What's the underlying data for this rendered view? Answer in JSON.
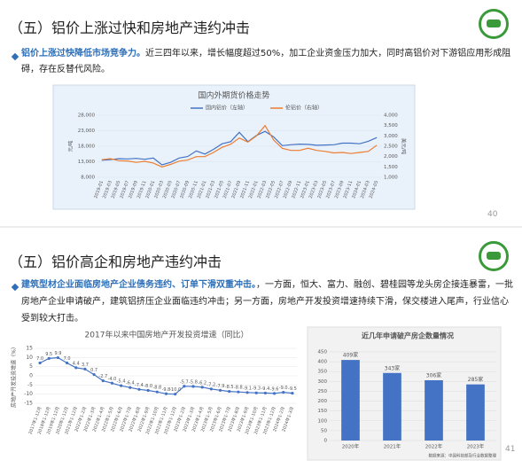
{
  "slides": [
    {
      "title": "（五）铝价上涨过快和房地产违约冲击",
      "bullet_bold": "铝价上涨过快降低市场竞争力。",
      "bullet_text": "近三四年以来，增长幅度超过50%，加工企业资金压力加大，同时高铝价对下游铝应用形成阻碍，存在反替代风险。",
      "page": "40",
      "chart_data": [
        {
          "type": "line",
          "title": "国内外期货价格走势",
          "y_label": "元/吨",
          "y2_label": "美元/吨",
          "categories": [
            "2019-01",
            "2019-03",
            "2019-05",
            "2019-07",
            "2019-09",
            "2019-11",
            "2020-01",
            "2020-03",
            "2020-05",
            "2020-07",
            "2020-09",
            "2020-11",
            "2021-01",
            "2021-03",
            "2021-05",
            "2021-07",
            "2021-09",
            "2021-11",
            "2022-01",
            "2022-03",
            "2022-05",
            "2022-07",
            "2022-09",
            "2022-11",
            "2023-01",
            "2023-03",
            "2023-05",
            "2023-07",
            "2023-09",
            "2023-11",
            "2024-01",
            "2024-03",
            "2024-05"
          ],
          "series": [
            {
              "name": "国内铝价（左轴）",
              "color": "#4472c4",
              "values": [
                13500,
                13700,
                14000,
                13900,
                14100,
                13800,
                14200,
                12000,
                12800,
                14200,
                14700,
                16500,
                15500,
                17000,
                18800,
                19500,
                22500,
                19500,
                21500,
                22800,
                21000,
                18200,
                18500,
                18700,
                18600,
                18300,
                18400,
                18500,
                19000,
                19000,
                18800,
                19600,
                20800
              ]
            },
            {
              "name": "伦铝价（右轴）",
              "color": "#ed7d31",
              "axis": "y2",
              "values": [
                1850,
                1900,
                1800,
                1790,
                1720,
                1770,
                1690,
                1500,
                1620,
                1780,
                1830,
                2000,
                2000,
                2200,
                2450,
                2600,
                2900,
                2700,
                3000,
                3500,
                2800,
                2400,
                2300,
                2300,
                2400,
                2300,
                2250,
                2180,
                2200,
                2150,
                2200,
                2250,
                2550
              ]
            }
          ],
          "ylim": [
            8000,
            28000
          ],
          "yticks": [
            {
              "value": 8000,
              "label": "8,000"
            },
            {
              "value": 13000,
              "label": "13,000"
            },
            {
              "value": 18000,
              "label": "18,000"
            },
            {
              "value": 23000,
              "label": "23,000"
            },
            {
              "value": 28000,
              "label": "28,000"
            }
          ],
          "y2lim": [
            1000,
            4000
          ],
          "y2ticks": [
            {
              "value": 1000,
              "label": "1,000"
            },
            {
              "value": 1500,
              "label": "1,500"
            },
            {
              "value": 2000,
              "label": "2,000"
            },
            {
              "value": 2500,
              "label": "2,500"
            },
            {
              "value": 3000,
              "label": "3,000"
            },
            {
              "value": 3500,
              "label": "3,500"
            },
            {
              "value": 4000,
              "label": "4,000"
            }
          ]
        }
      ]
    },
    {
      "title": "（五）铝价高企和房地产违约冲击",
      "bullet_bold": "建筑型材企业面临房地产企业债务违约、订单下滑双重冲击。",
      "bullet_text": "，一方面，恒大、富力、融创、碧桂园等龙头房企接连暴雷，一批房地产企业申请破产，建筑铝挤压企业面临违约冲击；另一方面，房地产开发投资增速持续下滑，保交楼进入尾声，行业信心受到较大打击。",
      "page": "41",
      "chart_data": [
        {
          "type": "line",
          "title": "2017年以来中国房地产开发投资增速（同比）",
          "y_label": "房地产开发投资增速（%）",
          "color": "#4472c4",
          "categories": [
            "2017年1-12月",
            "2018年1-12月",
            "2019年1-12月",
            "2020年1-12月",
            "2021年1-12月",
            "2022年1-2月",
            "2022年1-3月",
            "2022年1-4月",
            "2022年1-5月",
            "2022年1-6月",
            "2022年1-7月",
            "2022年1-8月",
            "2022年1-9月",
            "2022年1-10月",
            "2022年1-11月",
            "2022年1-12月",
            "2023年1-2月",
            "2023年1-3月",
            "2023年1-4月",
            "2023年1-5月",
            "2023年1-6月",
            "2023年1-7月",
            "2023年1-8月",
            "2023年1-9月",
            "2023年1-10月",
            "2023年1-11月",
            "2023年1-12月",
            "2024年1-2月",
            "2024年1-3月"
          ],
          "values": [
            7.0,
            9.5,
            9.9,
            7.0,
            4.4,
            3.7,
            0.7,
            -2.7,
            -4.0,
            -5.4,
            -6.4,
            -7.4,
            -8.0,
            -8.8,
            -9.8,
            -10.0,
            -5.7,
            -5.8,
            -6.2,
            -7.2,
            -7.9,
            -8.5,
            -8.8,
            -9.1,
            -9.3,
            -9.4,
            -9.6,
            -9.0,
            -9.5
          ],
          "value_labels": [
            "7.0",
            "9.5",
            "9.9",
            "7.0",
            "4.4",
            "3.7",
            "0.7",
            "-2.7",
            "-4.0",
            "-5.4",
            "-6.4",
            "-7.4",
            "-8.0",
            "-8.8",
            "-9.8",
            "-10.0",
            "-5.7",
            "-5.8",
            "-6.2",
            "-7.2",
            "-7.9",
            "-8.5",
            "-8.8",
            "-9.1",
            "-9.3",
            "-9.4",
            "-9.6",
            "-9.0",
            "-9.5"
          ],
          "ylim": [
            -15,
            15
          ],
          "yticks": [
            -15,
            -10,
            -5,
            0,
            5,
            10,
            15
          ]
        },
        {
          "type": "bar",
          "title": "近几年申请破产房企数量情况",
          "color": "#4472c4",
          "source": "数据来源：中国科技部及行业数据整理",
          "categories": [
            "2020年",
            "2021年",
            "2022年",
            "2023年"
          ],
          "values": [
            409,
            343,
            306,
            285
          ],
          "value_labels": [
            "409家",
            "343家",
            "306家",
            "285家"
          ],
          "ylim": [
            0,
            450
          ],
          "yticks": [
            0,
            50,
            100,
            150,
            200,
            250,
            300,
            350,
            400,
            450
          ]
        }
      ]
    }
  ]
}
